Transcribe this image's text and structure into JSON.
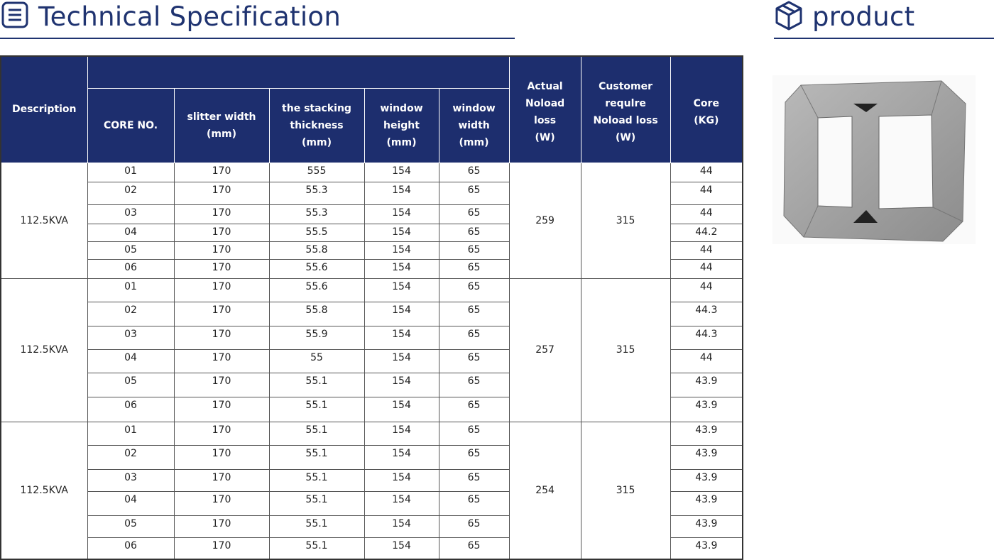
{
  "header": {
    "title": "Technical Specification",
    "product_title": "product"
  },
  "table": {
    "columns": [
      "Description",
      "CORE  NO.",
      "slitter width\n(mm)",
      "the stacking\nthickness\n(mm)",
      "window\nheight\n(mm)",
      "window\nwidth\n(mm)",
      "Actual\nNoload\nloss\n(W)",
      "Customer\nrequlre\nNoload loss\n(W)",
      "Core\n(KG)"
    ],
    "groups": [
      {
        "description": "112.5KVA",
        "actual_noload_loss": "259",
        "customer_noload_loss": "315",
        "rows": [
          [
            "01",
            "170",
            "555",
            "154",
            "65",
            "44"
          ],
          [
            "02",
            "170",
            "55.3",
            "154",
            "65",
            "44"
          ],
          [
            "03",
            "170",
            "55.3",
            "154",
            "65",
            "44"
          ],
          [
            "04",
            "170",
            "55.5",
            "154",
            "65",
            "44.2"
          ],
          [
            "05",
            "170",
            "55.8",
            "154",
            "65",
            "44"
          ],
          [
            "06",
            "170",
            "55.6",
            "154",
            "65",
            "44"
          ]
        ]
      },
      {
        "description": "112.5KVA",
        "actual_noload_loss": "257",
        "customer_noload_loss": "315",
        "rows": [
          [
            "01",
            "170",
            "55.6",
            "154",
            "65",
            "44"
          ],
          [
            "02",
            "170",
            "55.8",
            "154",
            "65",
            "44.3"
          ],
          [
            "03",
            "170",
            "55.9",
            "154",
            "65",
            "44.3"
          ],
          [
            "04",
            "170",
            "55",
            "154",
            "65",
            "44"
          ],
          [
            "05",
            "170",
            "55.1",
            "154",
            "65",
            "43.9"
          ],
          [
            "06",
            "170",
            "55.1",
            "154",
            "65",
            "43.9"
          ]
        ]
      },
      {
        "description": "112.5KVA",
        "actual_noload_loss": "254",
        "customer_noload_loss": "315",
        "rows": [
          [
            "01",
            "170",
            "55.1",
            "154",
            "65",
            "43.9"
          ],
          [
            "02",
            "170",
            "55.1",
            "154",
            "65",
            "43.9"
          ],
          [
            "03",
            "170",
            "55.1",
            "154",
            "65",
            "43.9"
          ],
          [
            "04",
            "170",
            "55.1",
            "154",
            "65",
            "43.9"
          ],
          [
            "05",
            "170",
            "55.1",
            "154",
            "65",
            "43.9"
          ],
          [
            "06",
            "170",
            "55.1",
            "154",
            "65",
            "43.9"
          ]
        ]
      }
    ]
  }
}
